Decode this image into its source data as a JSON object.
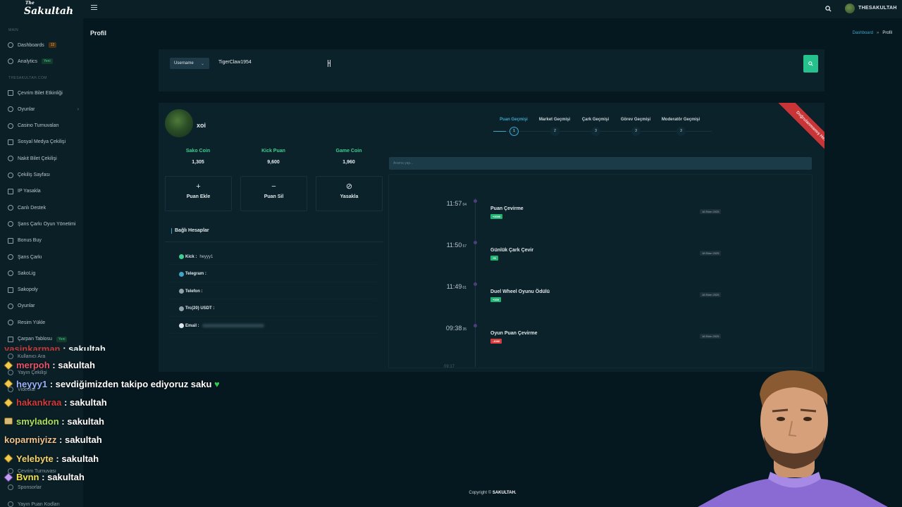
{
  "brand": {
    "logo_top": "The",
    "logo_main": "Sakultah"
  },
  "sidebar": {
    "section_main": "MAIN",
    "section_site": "THESAKULTAH.COM",
    "items_main": [
      {
        "label": "Dashboards",
        "badge": "12",
        "badge_color": "#f0a347",
        "icon": "home-icon"
      },
      {
        "label": "Analytics",
        "badge": "Yeni",
        "badge_color": "#3fce8f",
        "icon": "chart-icon"
      }
    ],
    "items": [
      {
        "label": "Çevrim Bilet Etkinliği",
        "icon": "ticket-icon"
      },
      {
        "label": "Oyunlar",
        "icon": "gamepad-icon",
        "has_submenu": true
      },
      {
        "label": "Casino Turnuvaları",
        "icon": "trophy-icon"
      },
      {
        "label": "Sosyal Medya Çekilişi",
        "icon": "share-icon"
      },
      {
        "label": "Nakit Bilet Çekilişi",
        "icon": "cash-icon"
      },
      {
        "label": "Çekiliş Sayfası",
        "icon": "gift-icon"
      },
      {
        "label": "IP Yasakla",
        "icon": "ban-icon"
      },
      {
        "label": "Canlı Destek",
        "icon": "headset-icon"
      },
      {
        "label": "Şans Çarkı Oyun Yönetimi",
        "icon": "wheel-icon"
      },
      {
        "label": "Bonus Buy",
        "icon": "cart-icon"
      },
      {
        "label": "Şans Çarkı",
        "icon": "wheel-icon"
      },
      {
        "label": "SakoLig",
        "icon": "league-icon"
      },
      {
        "label": "Sakopoly",
        "icon": "dice-icon"
      },
      {
        "label": "Oyunlar",
        "icon": "gamepad-icon"
      },
      {
        "label": "Resim Yükle",
        "icon": "upload-icon"
      },
      {
        "label": "Çarpan Tablosu",
        "badge": "Yeni",
        "icon": "table-icon"
      }
    ],
    "items_hidden": [
      {
        "label": "Kullanıcı Ara"
      },
      {
        "label": "Yayın Çekilişi"
      },
      {
        "label": "Videolar"
      },
      {
        "label": "Çevrim Turnuvası"
      },
      {
        "label": "Sponsorlar"
      },
      {
        "label": "Yayın Puan Kodları"
      }
    ]
  },
  "topbar": {
    "username": "THESAKULTAH"
  },
  "page": {
    "title": "Profil",
    "breadcrumb_link": "Dashboard",
    "breadcrumb_sep": "»",
    "breadcrumb_current": "Profil"
  },
  "search": {
    "type_label": "Username",
    "value": "TigerClaw1954"
  },
  "profile": {
    "name": "xoi",
    "stats": [
      {
        "label": "Sako Coin",
        "value": "1,305"
      },
      {
        "label": "Kick Puan",
        "value": "9,600"
      },
      {
        "label": "Game Coin",
        "value": "1,960"
      }
    ],
    "actions": [
      {
        "label": "Puan Ekle",
        "glyph": "+"
      },
      {
        "label": "Puan Sil",
        "glyph": "−"
      },
      {
        "label": "Yasakla",
        "glyph": "⊘"
      }
    ],
    "linked_title": "Bağlı Hesaplar",
    "linked": [
      {
        "label": "Kick :",
        "value": "heyyy1",
        "color": "#3fce8f"
      },
      {
        "label": "Telegram :",
        "value": "",
        "color": "#3fa6c9"
      },
      {
        "label": "Telefon :",
        "value": "",
        "color": "#8ea2a9"
      },
      {
        "label": "Trc(20) USDT :",
        "value": "",
        "color": "#8ea2a9"
      },
      {
        "label": "Email :",
        "value": "",
        "color": "#dfe7ea"
      }
    ],
    "ribbon": "Doğrulanmamış Hesap"
  },
  "tabs": [
    {
      "label": "Puan Geçmişi",
      "step": "1",
      "active": true
    },
    {
      "label": "Market Geçmişi",
      "step": "2"
    },
    {
      "label": "Çark Geçmişi",
      "step": "3"
    },
    {
      "label": "Görev Geçmişi",
      "step": "3"
    },
    {
      "label": "Moderatör Geçmişi",
      "step": "3"
    }
  ],
  "history": {
    "search_placeholder": "Arama yap...",
    "items": [
      {
        "time": "11:57",
        "sec": "04",
        "title": "Puan Çevirme",
        "badge": "+2000",
        "badge_type": "positive",
        "date": "18 Ekim 2025"
      },
      {
        "time": "11:50",
        "sec": "57",
        "title": "Günlük Çark Çevir",
        "badge": "+5",
        "badge_type": "positive",
        "date": "18 Ekim 2025"
      },
      {
        "time": "11:49",
        "sec": "01",
        "title": "Duel Wheel Oyunu Ödülü",
        "badge": "+100",
        "badge_type": "positive",
        "date": "18 Ekim 2025"
      },
      {
        "time": "09:38",
        "sec": "35",
        "title": "Oyun Puan Çevirme",
        "badge": "-1000",
        "badge_type": "negative",
        "date": "18 Ekim 2025"
      }
    ],
    "truncated_time": "09:17"
  },
  "footer": {
    "prefix": "Copyright ©",
    "brand": "SAKULTAH."
  },
  "chat": {
    "faded": {
      "user": "yasinkarman",
      "msg": "sakultah"
    },
    "lines": [
      {
        "user": "merpoh",
        "color": "#e5556b",
        "msg": "sakultah",
        "icon": "diamond-icon"
      },
      {
        "user": "heyyy1",
        "color": "#9bb3ff",
        "msg": "sevdiğimizden takipo ediyoruz saku",
        "icon": "diamond-icon",
        "heart": true
      },
      {
        "user": "hakankraa",
        "color": "#d43b3b",
        "msg": "sakultah",
        "icon": "diamond-icon"
      },
      {
        "user": "smyladon",
        "color": "#a9e05a",
        "msg": "sakultah",
        "icon": "mask-icon"
      },
      {
        "user": "koparmiyizz",
        "color": "#f0c28c",
        "msg": "sakultah",
        "icon": ""
      },
      {
        "user": "Yelebyte",
        "color": "#f3d36a",
        "msg": "sakultah",
        "icon": "diamond-icon"
      },
      {
        "user": "Bvnn",
        "color": "#f0e24c",
        "msg": "sakultah",
        "icon": "diamond-purple-icon"
      }
    ]
  }
}
